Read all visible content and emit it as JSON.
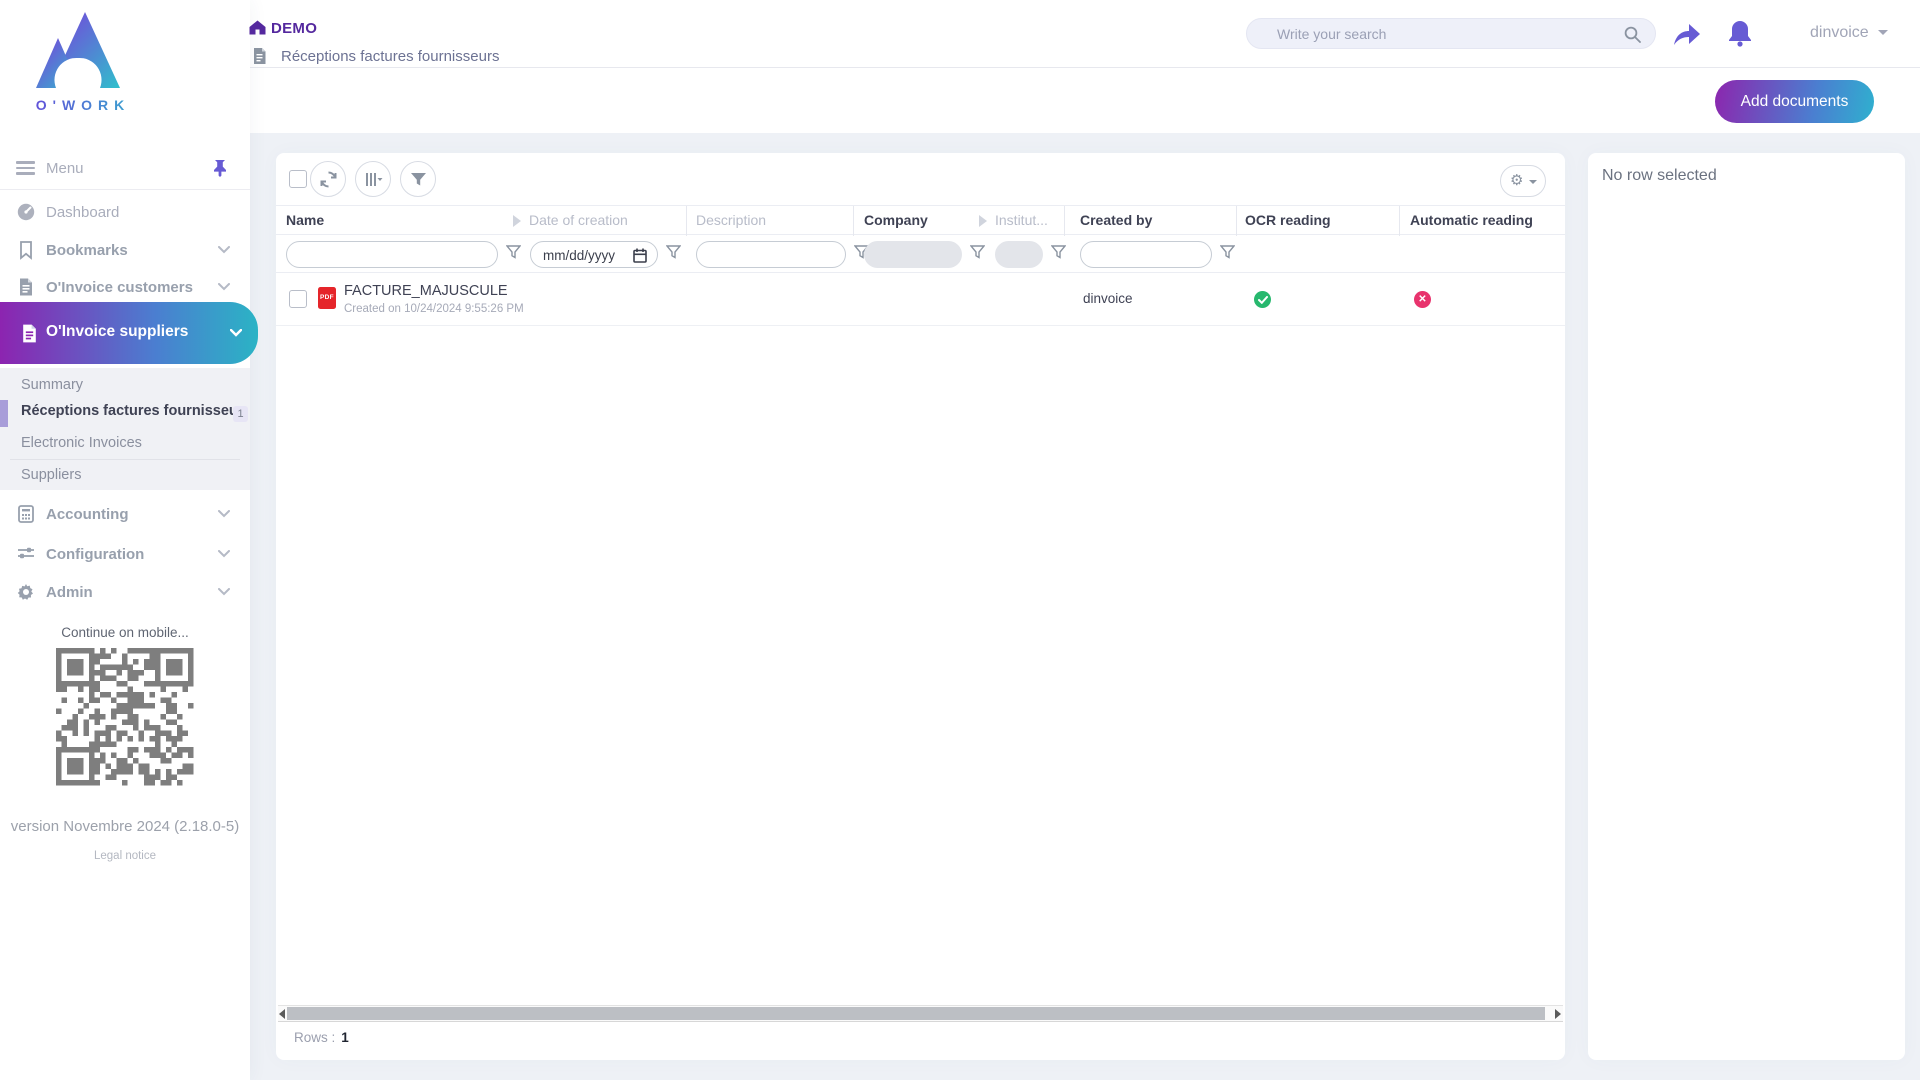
{
  "brand": {
    "name": "O'WORK"
  },
  "header": {
    "breadcrumb": {
      "title": "DEMO",
      "subtitle": "Réceptions factures fournisseurs"
    },
    "search": {
      "placeholder": "Write your search"
    },
    "user": {
      "name": "dinvoice"
    },
    "add_documents_label": "Add documents"
  },
  "sidebar": {
    "menu_label": "Menu",
    "items": [
      {
        "label": "Dashboard"
      },
      {
        "label": "Bookmarks"
      },
      {
        "label": "O'Invoice customers"
      },
      {
        "label": "O'Invoice suppliers",
        "active": true
      }
    ],
    "submenu": [
      {
        "label": "Summary"
      },
      {
        "label": "Réceptions factures fournisseur",
        "badge": "1",
        "active": true
      },
      {
        "label": "Electronic Invoices"
      },
      {
        "label": "Suppliers"
      }
    ],
    "items_bottom": [
      {
        "label": "Accounting"
      },
      {
        "label": "Configuration"
      },
      {
        "label": "Admin"
      }
    ],
    "mobile_hint": "Continue on mobile...",
    "version": "version Novembre 2024 (2.18.0-5)",
    "legal_notice": "Legal notice"
  },
  "table": {
    "columns": [
      "Name",
      "Date of creation",
      "Description",
      "Company",
      "Institut...",
      "Created by",
      "OCR reading",
      "Automatic reading"
    ],
    "filters": {
      "date_placeholder": "mm/dd/yyyy"
    },
    "rows": [
      {
        "name": "FACTURE_MAJUSCULE",
        "created": "Created on 10/24/2024 9:55:26 PM",
        "created_by": "dinvoice",
        "ocr_reading": "success",
        "automatic_reading": "failed"
      }
    ],
    "footer": {
      "rows_label": "Rows :",
      "rows_count": "1"
    }
  },
  "details_panel": {
    "empty_message": "No row selected"
  },
  "colors": {
    "accent_purple": "#675bd4",
    "brand_gradient_start": "#8c26ae",
    "brand_gradient_end": "#2fb0cf",
    "success": "#27b86e",
    "error": "#e8336d",
    "pdf_red": "#e5252a"
  }
}
